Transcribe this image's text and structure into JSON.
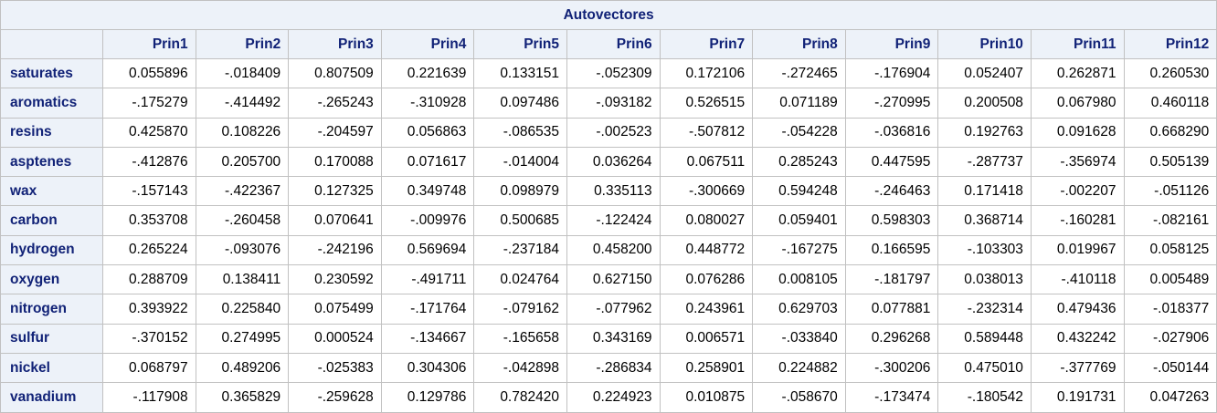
{
  "title": "Autovectores",
  "columns": [
    "Prin1",
    "Prin2",
    "Prin3",
    "Prin4",
    "Prin5",
    "Prin6",
    "Prin7",
    "Prin8",
    "Prin9",
    "Prin10",
    "Prin11",
    "Prin12"
  ],
  "rows": [
    {
      "label": "saturates",
      "values": [
        "0.055896",
        "-.018409",
        "0.807509",
        "0.221639",
        "0.133151",
        "-.052309",
        "0.172106",
        "-.272465",
        "-.176904",
        "0.052407",
        "0.262871",
        "0.260530"
      ]
    },
    {
      "label": "aromatics",
      "values": [
        "-.175279",
        "-.414492",
        "-.265243",
        "-.310928",
        "0.097486",
        "-.093182",
        "0.526515",
        "0.071189",
        "-.270995",
        "0.200508",
        "0.067980",
        "0.460118"
      ]
    },
    {
      "label": "resins",
      "values": [
        "0.425870",
        "0.108226",
        "-.204597",
        "0.056863",
        "-.086535",
        "-.002523",
        "-.507812",
        "-.054228",
        "-.036816",
        "0.192763",
        "0.091628",
        "0.668290"
      ]
    },
    {
      "label": "asptenes",
      "values": [
        "-.412876",
        "0.205700",
        "0.170088",
        "0.071617",
        "-.014004",
        "0.036264",
        "0.067511",
        "0.285243",
        "0.447595",
        "-.287737",
        "-.356974",
        "0.505139"
      ]
    },
    {
      "label": "wax",
      "values": [
        "-.157143",
        "-.422367",
        "0.127325",
        "0.349748",
        "0.098979",
        "0.335113",
        "-.300669",
        "0.594248",
        "-.246463",
        "0.171418",
        "-.002207",
        "-.051126"
      ]
    },
    {
      "label": "carbon",
      "values": [
        "0.353708",
        "-.260458",
        "0.070641",
        "-.009976",
        "0.500685",
        "-.122424",
        "0.080027",
        "0.059401",
        "0.598303",
        "0.368714",
        "-.160281",
        "-.082161"
      ]
    },
    {
      "label": "hydrogen",
      "values": [
        "0.265224",
        "-.093076",
        "-.242196",
        "0.569694",
        "-.237184",
        "0.458200",
        "0.448772",
        "-.167275",
        "0.166595",
        "-.103303",
        "0.019967",
        "0.058125"
      ]
    },
    {
      "label": "oxygen",
      "values": [
        "0.288709",
        "0.138411",
        "0.230592",
        "-.491711",
        "0.024764",
        "0.627150",
        "0.076286",
        "0.008105",
        "-.181797",
        "0.038013",
        "-.410118",
        "0.005489"
      ]
    },
    {
      "label": "nitrogen",
      "values": [
        "0.393922",
        "0.225840",
        "0.075499",
        "-.171764",
        "-.079162",
        "-.077962",
        "0.243961",
        "0.629703",
        "0.077881",
        "-.232314",
        "0.479436",
        "-.018377"
      ]
    },
    {
      "label": "sulfur",
      "values": [
        "-.370152",
        "0.274995",
        "0.000524",
        "-.134667",
        "-.165658",
        "0.343169",
        "0.006571",
        "-.033840",
        "0.296268",
        "0.589448",
        "0.432242",
        "-.027906"
      ]
    },
    {
      "label": "nickel",
      "values": [
        "0.068797",
        "0.489206",
        "-.025383",
        "0.304306",
        "-.042898",
        "-.286834",
        "0.258901",
        "0.224882",
        "-.300206",
        "0.475010",
        "-.377769",
        "-.050144"
      ]
    },
    {
      "label": "vanadium",
      "values": [
        "-.117908",
        "0.365829",
        "-.259628",
        "0.129786",
        "0.782420",
        "0.224923",
        "0.010875",
        "-.058670",
        "-.173474",
        "-.180542",
        "0.191731",
        "0.047263"
      ]
    }
  ]
}
